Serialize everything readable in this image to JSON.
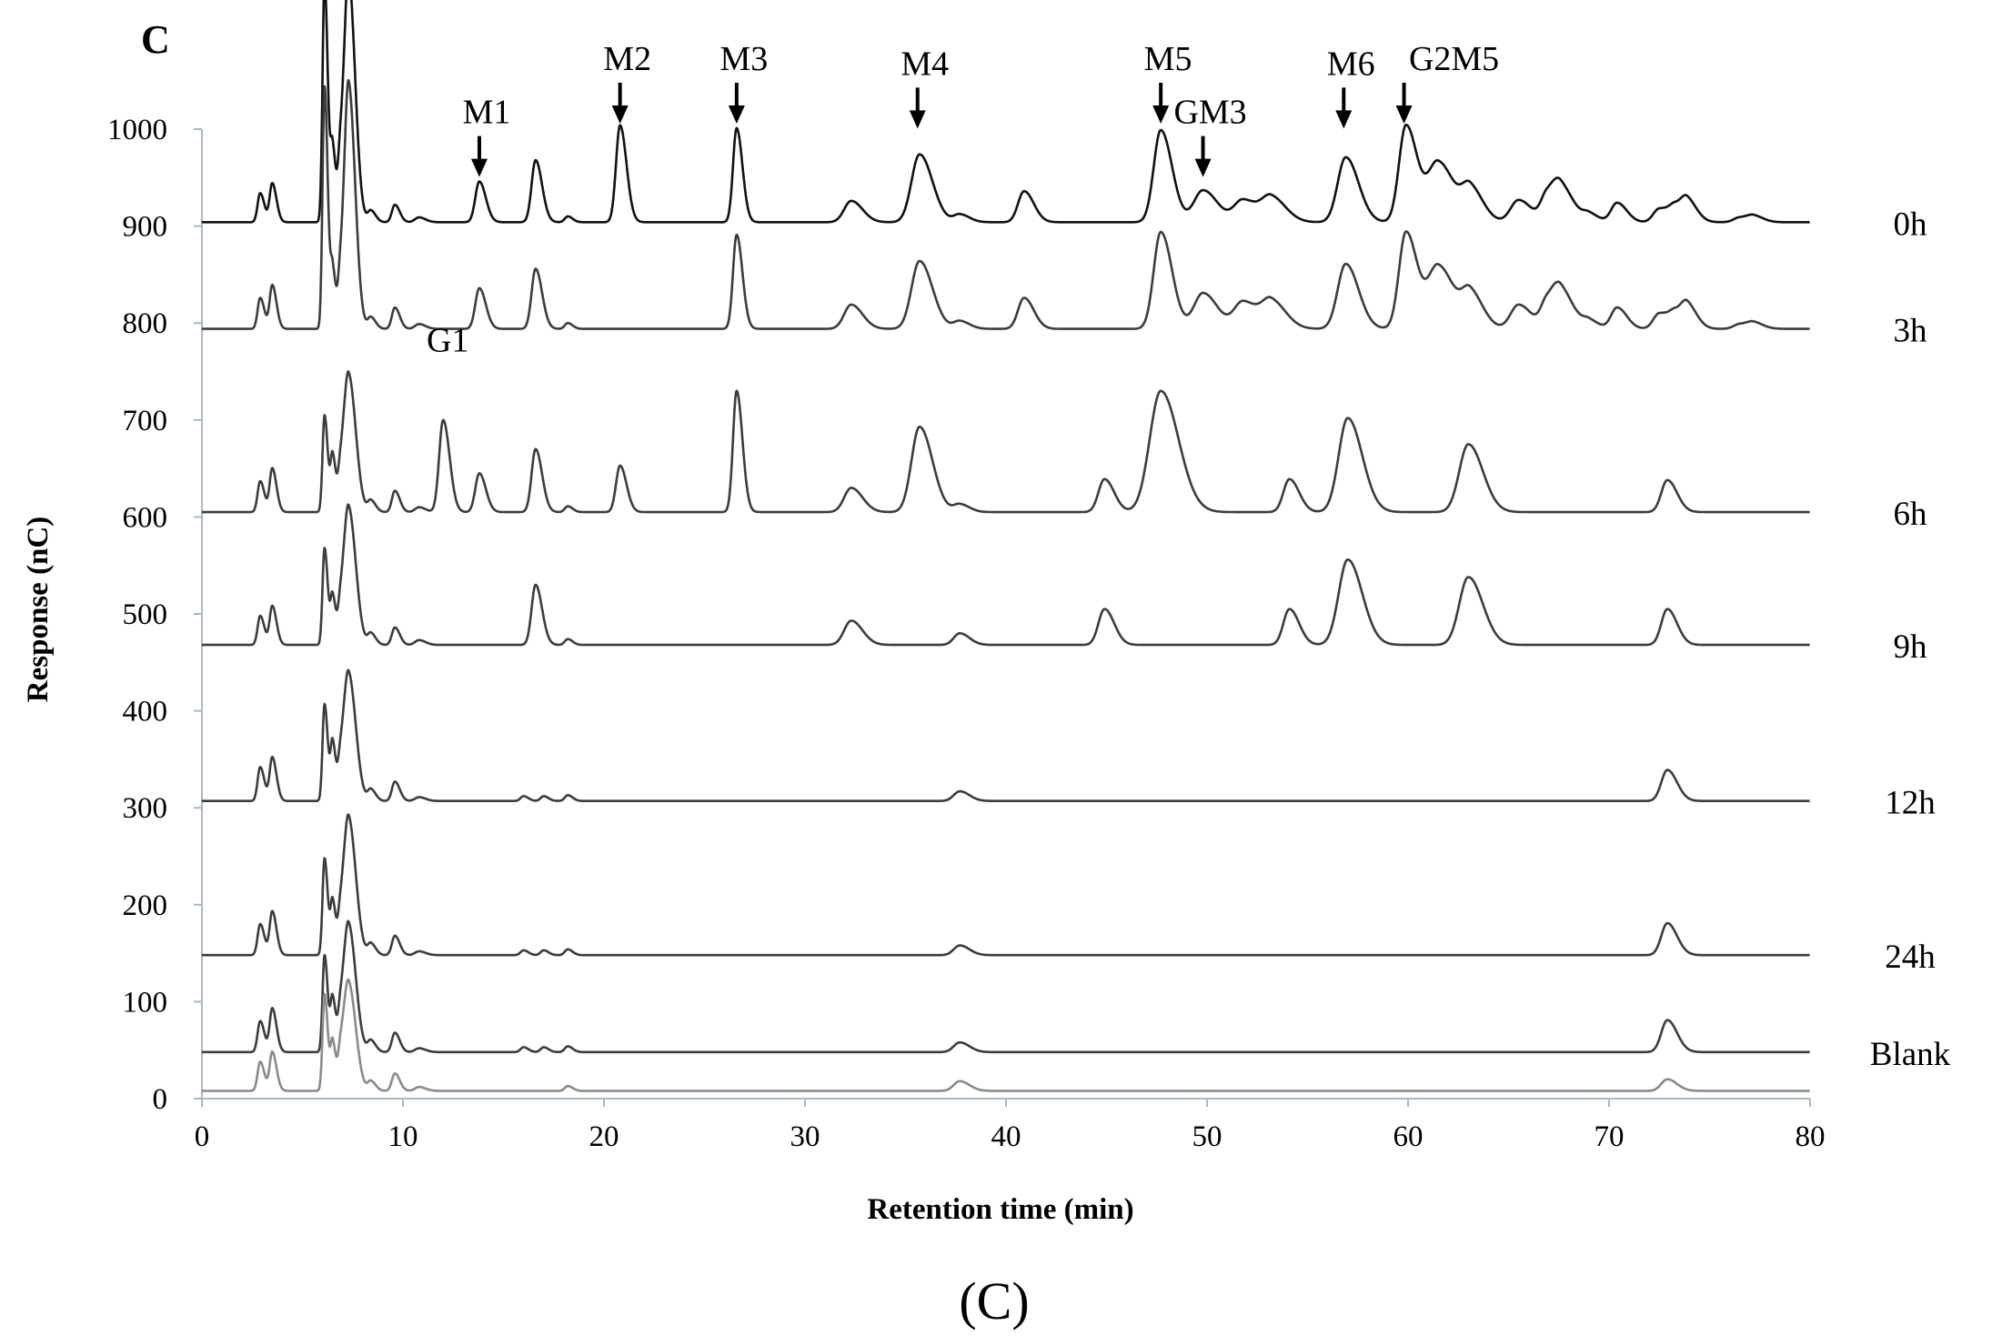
{
  "chart_data": {
    "type": "line",
    "panel_letter": "C",
    "caption": "(C)",
    "xlabel": "Retention time (min)",
    "ylabel": "Response (nC)",
    "xlim": [
      0,
      80
    ],
    "ylim": [
      0,
      1000
    ],
    "xticks": [
      0,
      10,
      20,
      30,
      40,
      50,
      60,
      70,
      80
    ],
    "yticks": [
      0,
      100,
      200,
      300,
      400,
      500,
      600,
      700,
      800,
      900,
      1000
    ],
    "grid": false,
    "legend": "none",
    "colors": {
      "axis": "#a9b7c6",
      "text": "#000000"
    },
    "peak_annotations": [
      {
        "label": "M1",
        "x": 13.8,
        "y": 945,
        "arrow": true
      },
      {
        "label": "M2",
        "x": 20.8,
        "y": 1000,
        "arrow": true
      },
      {
        "label": "M3",
        "x": 26.6,
        "y": 1000,
        "arrow": true
      },
      {
        "label": "M4",
        "x": 35.6,
        "y": 995,
        "arrow": true
      },
      {
        "label": "M5",
        "x": 47.7,
        "y": 1000,
        "arrow": true
      },
      {
        "label": "GM3",
        "x": 49.8,
        "y": 945,
        "arrow": true
      },
      {
        "label": "M6",
        "x": 56.8,
        "y": 995,
        "arrow": true
      },
      {
        "label": "G2M5",
        "x": 59.8,
        "y": 1000,
        "arrow": true
      },
      {
        "label": "G1",
        "x": 12.0,
        "y": 752,
        "arrow": false
      }
    ],
    "series": [
      {
        "name": "0h",
        "baseline": 904,
        "color": "#111111",
        "peaks": [
          [
            2.9,
            30,
            0.13
          ],
          [
            3.5,
            40,
            0.13
          ],
          [
            6.1,
            250,
            0.1
          ],
          [
            6.5,
            75,
            0.1
          ],
          [
            6.9,
            70,
            0.12
          ],
          [
            7.3,
            250,
            0.2
          ],
          [
            8.4,
            12,
            0.15
          ],
          [
            9.6,
            18,
            0.15
          ],
          [
            10.8,
            5,
            0.2
          ],
          [
            13.8,
            42,
            0.2
          ],
          [
            16.6,
            64,
            0.2
          ],
          [
            18.2,
            6,
            0.15
          ],
          [
            20.8,
            100,
            0.2
          ],
          [
            26.6,
            97,
            0.18
          ],
          [
            32.3,
            22,
            0.35
          ],
          [
            35.7,
            70,
            0.4
          ],
          [
            37.7,
            8,
            0.3
          ],
          [
            40.9,
            32,
            0.3
          ],
          [
            47.7,
            95,
            0.35
          ],
          [
            49.8,
            33,
            0.45
          ],
          [
            51.8,
            23,
            0.45
          ],
          [
            53.2,
            25,
            0.45
          ],
          [
            56.9,
            67,
            0.4
          ],
          [
            59.9,
            100,
            0.35
          ],
          [
            61.5,
            62,
            0.5
          ],
          [
            63.1,
            33,
            0.4
          ],
          [
            65.5,
            23,
            0.4
          ],
          [
            66.9,
            25,
            0.3
          ],
          [
            67.6,
            35,
            0.4
          ],
          [
            69.0,
            8,
            0.3
          ],
          [
            70.4,
            20,
            0.3
          ],
          [
            72.5,
            14,
            0.3
          ],
          [
            73.3,
            15,
            0.3
          ],
          [
            73.9,
            20,
            0.3
          ],
          [
            76.5,
            5,
            0.3
          ],
          [
            77.2,
            6,
            0.3
          ]
        ]
      },
      {
        "name": "3h",
        "baseline": 794,
        "color": "#3c3c3c",
        "peaks": [
          [
            2.9,
            32,
            0.13
          ],
          [
            3.5,
            45,
            0.13
          ],
          [
            6.1,
            250,
            0.1
          ],
          [
            6.5,
            60,
            0.1
          ],
          [
            6.9,
            55,
            0.12
          ],
          [
            7.3,
            250,
            0.2
          ],
          [
            8.4,
            12,
            0.15
          ],
          [
            9.6,
            22,
            0.15
          ],
          [
            10.8,
            5,
            0.2
          ],
          [
            13.8,
            42,
            0.2
          ],
          [
            16.6,
            62,
            0.2
          ],
          [
            18.2,
            6,
            0.15
          ],
          [
            26.6,
            97,
            0.18
          ],
          [
            32.3,
            25,
            0.35
          ],
          [
            35.7,
            70,
            0.4
          ],
          [
            37.7,
            8,
            0.3
          ],
          [
            40.9,
            32,
            0.3
          ],
          [
            47.7,
            100,
            0.35
          ],
          [
            49.8,
            37,
            0.45
          ],
          [
            51.8,
            28,
            0.45
          ],
          [
            53.2,
            28,
            0.45
          ],
          [
            56.9,
            67,
            0.4
          ],
          [
            59.9,
            100,
            0.35
          ],
          [
            61.5,
            65,
            0.5
          ],
          [
            63.1,
            35,
            0.4
          ],
          [
            65.5,
            25,
            0.4
          ],
          [
            66.9,
            25,
            0.3
          ],
          [
            67.6,
            38,
            0.4
          ],
          [
            69.0,
            8,
            0.3
          ],
          [
            70.4,
            22,
            0.3
          ],
          [
            72.5,
            16,
            0.3
          ],
          [
            73.3,
            15,
            0.3
          ],
          [
            73.9,
            22,
            0.3
          ],
          [
            76.5,
            5,
            0.3
          ],
          [
            77.2,
            6,
            0.3
          ]
        ]
      },
      {
        "name": "6h",
        "baseline": 605,
        "color": "#3c3c3c",
        "peaks": [
          [
            2.9,
            32,
            0.13
          ],
          [
            3.5,
            45,
            0.13
          ],
          [
            6.1,
            100,
            0.1
          ],
          [
            6.5,
            58,
            0.1
          ],
          [
            6.9,
            40,
            0.12
          ],
          [
            7.3,
            140,
            0.22
          ],
          [
            8.4,
            12,
            0.15
          ],
          [
            9.6,
            22,
            0.15
          ],
          [
            10.8,
            5,
            0.2
          ],
          [
            12.0,
            95,
            0.2
          ],
          [
            13.8,
            40,
            0.2
          ],
          [
            16.6,
            65,
            0.2
          ],
          [
            18.2,
            6,
            0.15
          ],
          [
            20.8,
            48,
            0.2
          ],
          [
            26.6,
            125,
            0.18
          ],
          [
            32.3,
            25,
            0.35
          ],
          [
            35.7,
            88,
            0.4
          ],
          [
            37.7,
            8,
            0.3
          ],
          [
            44.9,
            34,
            0.3
          ],
          [
            47.7,
            125,
            0.55
          ],
          [
            54.1,
            34,
            0.3
          ],
          [
            57.0,
            97,
            0.45
          ],
          [
            63.0,
            70,
            0.45
          ],
          [
            72.9,
            33,
            0.3
          ]
        ]
      },
      {
        "name": "9h",
        "baseline": 468,
        "color": "#3c3c3c",
        "peaks": [
          [
            2.9,
            30,
            0.13
          ],
          [
            3.5,
            40,
            0.13
          ],
          [
            6.1,
            100,
            0.1
          ],
          [
            6.5,
            50,
            0.1
          ],
          [
            6.9,
            38,
            0.12
          ],
          [
            7.3,
            140,
            0.22
          ],
          [
            8.4,
            12,
            0.15
          ],
          [
            9.6,
            18,
            0.15
          ],
          [
            10.8,
            5,
            0.2
          ],
          [
            16.6,
            62,
            0.2
          ],
          [
            18.2,
            6,
            0.15
          ],
          [
            32.3,
            25,
            0.35
          ],
          [
            37.7,
            12,
            0.3
          ],
          [
            44.9,
            37,
            0.3
          ],
          [
            54.1,
            37,
            0.3
          ],
          [
            57.0,
            88,
            0.45
          ],
          [
            63.0,
            70,
            0.45
          ],
          [
            72.9,
            37,
            0.3
          ]
        ]
      },
      {
        "name": "12h",
        "baseline": 307,
        "color": "#3c3c3c",
        "peaks": [
          [
            2.9,
            35,
            0.13
          ],
          [
            3.5,
            45,
            0.13
          ],
          [
            6.1,
            100,
            0.1
          ],
          [
            6.5,
            60,
            0.1
          ],
          [
            6.9,
            40,
            0.12
          ],
          [
            7.3,
            130,
            0.22
          ],
          [
            8.4,
            12,
            0.15
          ],
          [
            9.6,
            20,
            0.15
          ],
          [
            10.8,
            4,
            0.2
          ],
          [
            16.0,
            5,
            0.15
          ],
          [
            17.0,
            5,
            0.15
          ],
          [
            18.2,
            6,
            0.15
          ],
          [
            37.7,
            10,
            0.3
          ],
          [
            72.9,
            32,
            0.3
          ]
        ]
      },
      {
        "name": "24h",
        "baseline": 148,
        "color": "#3c3c3c",
        "peaks": [
          [
            2.9,
            32,
            0.13
          ],
          [
            3.5,
            45,
            0.13
          ],
          [
            6.1,
            100,
            0.1
          ],
          [
            6.5,
            55,
            0.1
          ],
          [
            6.9,
            40,
            0.12
          ],
          [
            7.3,
            140,
            0.22
          ],
          [
            8.4,
            12,
            0.15
          ],
          [
            9.6,
            20,
            0.15
          ],
          [
            10.8,
            4,
            0.2
          ],
          [
            16.0,
            5,
            0.15
          ],
          [
            17.0,
            5,
            0.15
          ],
          [
            18.2,
            6,
            0.15
          ],
          [
            37.7,
            10,
            0.3
          ],
          [
            72.9,
            33,
            0.3
          ]
        ]
      },
      {
        "name": "Blank",
        "baseline": 48,
        "color": "#3c3c3c",
        "peaks": [
          [
            2.9,
            32,
            0.13
          ],
          [
            3.5,
            45,
            0.13
          ],
          [
            6.1,
            100,
            0.1
          ],
          [
            6.5,
            55,
            0.1
          ],
          [
            6.9,
            40,
            0.12
          ],
          [
            7.3,
            130,
            0.22
          ],
          [
            8.4,
            12,
            0.15
          ],
          [
            9.6,
            20,
            0.15
          ],
          [
            10.8,
            4,
            0.2
          ],
          [
            16.0,
            5,
            0.15
          ],
          [
            17.0,
            5,
            0.15
          ],
          [
            18.2,
            6,
            0.15
          ],
          [
            37.7,
            10,
            0.3
          ],
          [
            72.9,
            33,
            0.3
          ]
        ]
      },
      {
        "name": "",
        "baseline": 8,
        "color": "#8a8a8a",
        "peaks": [
          [
            2.9,
            30,
            0.13
          ],
          [
            3.5,
            40,
            0.13
          ],
          [
            6.1,
            100,
            0.1
          ],
          [
            6.5,
            50,
            0.1
          ],
          [
            6.9,
            38,
            0.12
          ],
          [
            7.3,
            110,
            0.22
          ],
          [
            8.4,
            10,
            0.15
          ],
          [
            9.6,
            18,
            0.15
          ],
          [
            10.8,
            4,
            0.2
          ],
          [
            18.2,
            5,
            0.15
          ],
          [
            37.7,
            10,
            0.3
          ],
          [
            72.9,
            12,
            0.3
          ]
        ]
      }
    ]
  }
}
